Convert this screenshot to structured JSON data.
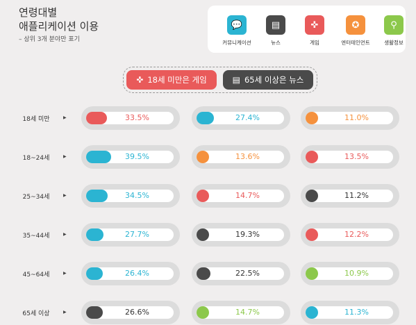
{
  "title_line1": "연령대별",
  "title_line2": "애플리케이션 이용",
  "subtitle": "– 상위 3개 분야만 표기",
  "colors": {
    "communication": "#2bb4d2",
    "news": "#4a4a4a",
    "game": "#e95a5a",
    "entertainment": "#f5913d",
    "lifestyle": "#8cc84b"
  },
  "legend": [
    {
      "key": "communication",
      "label": "커뮤니케이션",
      "icon": "chat-bubble-icon",
      "glyph": "💬"
    },
    {
      "key": "news",
      "label": "뉴스",
      "icon": "newspaper-icon",
      "glyph": "▤"
    },
    {
      "key": "game",
      "label": "게임",
      "icon": "gamepad-icon",
      "glyph": "✜"
    },
    {
      "key": "entertainment",
      "label": "엔터테인먼트",
      "icon": "film-reel-icon",
      "glyph": "✪"
    },
    {
      "key": "lifestyle",
      "label": "생활정보",
      "icon": "magnifier-icon",
      "glyph": "⚲"
    }
  ],
  "highlights": [
    {
      "text": "18세 미만은 게임",
      "key": "game",
      "icon": "gamepad-icon",
      "glyph": "✜"
    },
    {
      "text": "65세 이상은 뉴스",
      "key": "news",
      "icon": "newspaper-icon",
      "glyph": "▤"
    }
  ],
  "chart_data": {
    "type": "table",
    "unit": "%",
    "max_value": 40,
    "rows": [
      {
        "age": "18세 미만",
        "cells": [
          {
            "category": "game",
            "value": 33.5
          },
          {
            "category": "communication",
            "value": 27.4
          },
          {
            "category": "entertainment",
            "value": 11.0
          }
        ]
      },
      {
        "age": "18~24세",
        "cells": [
          {
            "category": "communication",
            "value": 39.5
          },
          {
            "category": "entertainment",
            "value": 13.6
          },
          {
            "category": "game",
            "value": 13.5
          }
        ]
      },
      {
        "age": "25~34세",
        "cells": [
          {
            "category": "communication",
            "value": 34.5
          },
          {
            "category": "game",
            "value": 14.7
          },
          {
            "category": "news",
            "value": 11.2
          }
        ]
      },
      {
        "age": "35~44세",
        "cells": [
          {
            "category": "communication",
            "value": 27.7
          },
          {
            "category": "news",
            "value": 19.3
          },
          {
            "category": "game",
            "value": 12.2
          }
        ]
      },
      {
        "age": "45~64세",
        "cells": [
          {
            "category": "communication",
            "value": 26.4
          },
          {
            "category": "news",
            "value": 22.5
          },
          {
            "category": "lifestyle",
            "value": 10.9
          }
        ]
      },
      {
        "age": "65세 이상",
        "cells": [
          {
            "category": "news",
            "value": 26.6
          },
          {
            "category": "lifestyle",
            "value": 14.7
          },
          {
            "category": "communication",
            "value": 11.3
          }
        ]
      }
    ]
  }
}
